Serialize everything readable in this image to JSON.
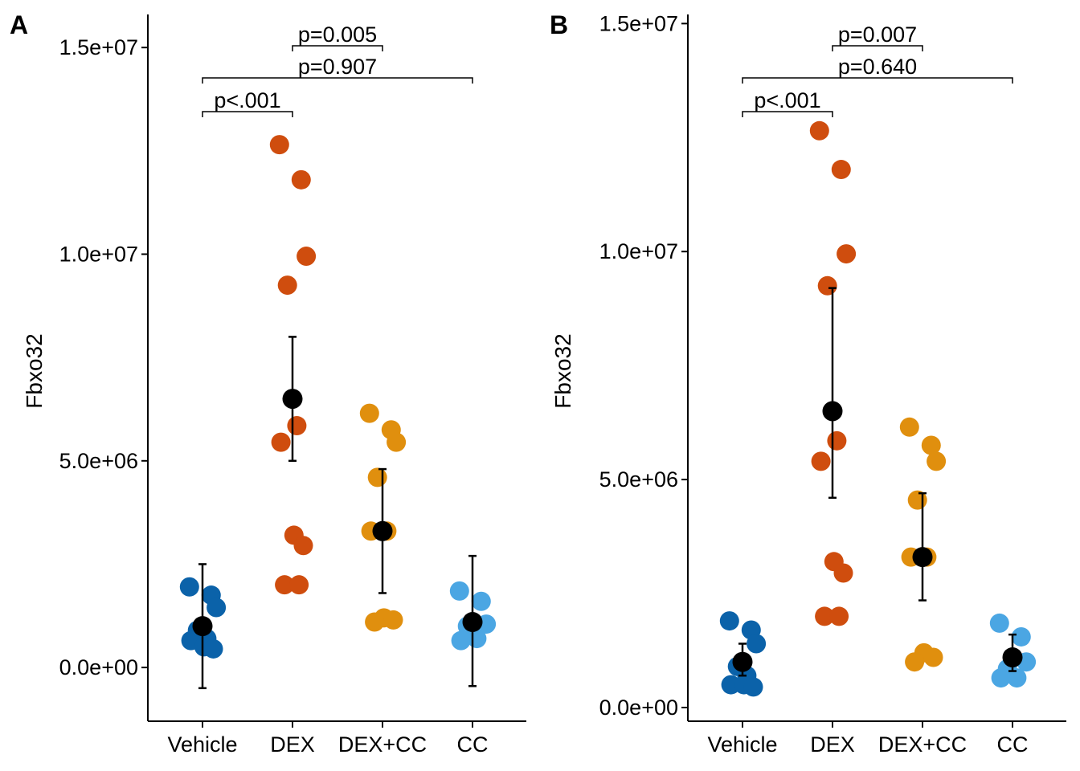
{
  "chart_data": [
    {
      "panel": "A",
      "type": "scatter",
      "ylabel": "Fbxo32",
      "xlabel": "",
      "categories": [
        "Vehicle",
        "DEX",
        "DEX+CC",
        "CC"
      ],
      "yticks": [
        "0.0e+00",
        "5.0e+06",
        "1.0e+07",
        "1.5e+07"
      ],
      "ytick_values": [
        0,
        5000000,
        10000000,
        15000000
      ],
      "ylim": [
        -1300000,
        15800000
      ],
      "points": {
        "Vehicle": [
          1950000,
          1750000,
          1450000,
          900000,
          700000,
          650000,
          500000,
          450000
        ],
        "DEX": [
          12650000,
          11800000,
          9950000,
          9250000,
          5850000,
          5450000,
          3200000,
          2950000,
          2000000,
          2000000
        ],
        "DEX+CC": [
          6150000,
          5750000,
          5450000,
          4600000,
          3300000,
          3300000,
          1200000,
          1150000,
          1100000
        ],
        "CC": [
          1850000,
          1600000,
          1050000,
          1000000,
          700000,
          650000
        ]
      },
      "summary": [
        {
          "group": "Vehicle",
          "mean": 1000000,
          "low": -500000,
          "high": 2500000
        },
        {
          "group": "DEX",
          "mean": 6500000,
          "low": 5000000,
          "high": 8000000
        },
        {
          "group": "DEX+CC",
          "mean": 3300000,
          "low": 1800000,
          "high": 4800000
        },
        {
          "group": "CC",
          "mean": 1100000,
          "low": -450000,
          "high": 2700000
        }
      ],
      "comparisons": [
        {
          "from": "Vehicle",
          "to": "DEX",
          "label": "p<.001"
        },
        {
          "from": "DEX",
          "to": "DEX+CC",
          "label": "p=0.005"
        },
        {
          "from": "Vehicle",
          "to": "CC",
          "label": "p=0.907"
        }
      ],
      "colors": {
        "Vehicle": "#0b62a9",
        "DEX": "#cf4d0e",
        "DEX+CC": "#e08f0e",
        "CC": "#4ba6e3",
        "summary": "#000000"
      },
      "grid": false
    },
    {
      "panel": "B",
      "type": "scatter",
      "ylabel": "Fbxo32",
      "xlabel": "",
      "categories": [
        "Vehicle",
        "DEX",
        "DEX+CC",
        "CC"
      ],
      "yticks": [
        "0.0e+00",
        "5.0e+06",
        "1.0e+07",
        "1.5e+07"
      ],
      "ytick_values": [
        0,
        5000000,
        10000000,
        15000000
      ],
      "ylim": [
        -300000,
        15200000
      ],
      "points": {
        "Vehicle": [
          1900000,
          1700000,
          1400000,
          900000,
          700000,
          500000,
          500000,
          450000
        ],
        "DEX": [
          12650000,
          11800000,
          9950000,
          9250000,
          5850000,
          5400000,
          3200000,
          2950000,
          2000000,
          2000000
        ],
        "DEX+CC": [
          6150000,
          5750000,
          5400000,
          4550000,
          3300000,
          3300000,
          1200000,
          1100000,
          1000000
        ],
        "CC": [
          1850000,
          1550000,
          1000000,
          850000,
          650000,
          650000
        ]
      },
      "summary": [
        {
          "group": "Vehicle",
          "mean": 1000000,
          "low": 700000,
          "high": 1400000
        },
        {
          "group": "DEX",
          "mean": 6500000,
          "low": 4600000,
          "high": 9200000
        },
        {
          "group": "DEX+CC",
          "mean": 3300000,
          "low": 2350000,
          "high": 4700000
        },
        {
          "group": "CC",
          "mean": 1100000,
          "low": 800000,
          "high": 1600000
        }
      ],
      "comparisons": [
        {
          "from": "Vehicle",
          "to": "DEX",
          "label": "p<.001"
        },
        {
          "from": "DEX",
          "to": "DEX+CC",
          "label": "p=0.007"
        },
        {
          "from": "Vehicle",
          "to": "CC",
          "label": "p=0.640"
        }
      ],
      "colors": {
        "Vehicle": "#0b62a9",
        "DEX": "#cf4d0e",
        "DEX+CC": "#e08f0e",
        "CC": "#4ba6e3",
        "summary": "#000000"
      },
      "grid": false
    }
  ]
}
